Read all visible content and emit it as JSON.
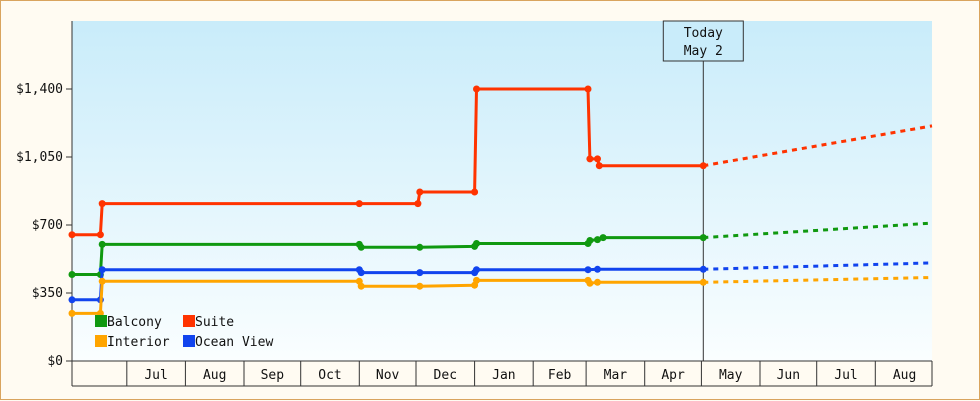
{
  "chart_data": {
    "type": "line",
    "title": "",
    "xlabel": "",
    "ylabel": "",
    "ylim": [
      0,
      1750
    ],
    "y_ticks": [
      {
        "value": 0,
        "label": "$0"
      },
      {
        "value": 350,
        "label": "$350"
      },
      {
        "value": 700,
        "label": "$700"
      },
      {
        "value": 1050,
        "label": "$1,050"
      },
      {
        "value": 1400,
        "label": "$1,400"
      }
    ],
    "x_axis": {
      "start": "2024-06-02",
      "end": "2025-08-31",
      "months": [
        {
          "label": "Jul",
          "start": "2024-07-01",
          "end": "2024-08-01"
        },
        {
          "label": "Aug",
          "start": "2024-08-01",
          "end": "2024-09-01"
        },
        {
          "label": "Sep",
          "start": "2024-09-01",
          "end": "2024-10-01"
        },
        {
          "label": "Oct",
          "start": "2024-10-01",
          "end": "2024-11-01"
        },
        {
          "label": "Nov",
          "start": "2024-11-01",
          "end": "2024-12-01"
        },
        {
          "label": "Dec",
          "start": "2024-12-01",
          "end": "2025-01-01"
        },
        {
          "label": "Jan",
          "start": "2025-01-01",
          "end": "2025-02-01"
        },
        {
          "label": "Feb",
          "start": "2025-02-01",
          "end": "2025-03-01"
        },
        {
          "label": "Mar",
          "start": "2025-03-01",
          "end": "2025-04-01"
        },
        {
          "label": "Apr",
          "start": "2025-04-01",
          "end": "2025-05-01"
        },
        {
          "label": "May",
          "start": "2025-05-01",
          "end": "2025-06-01"
        },
        {
          "label": "Jun",
          "start": "2025-06-01",
          "end": "2025-07-01"
        },
        {
          "label": "Jul",
          "start": "2025-07-01",
          "end": "2025-08-01"
        },
        {
          "label": "Aug",
          "start": "2025-08-01",
          "end": "2025-09-01"
        }
      ]
    },
    "today": {
      "date": "2025-05-02",
      "label_line1": "Today",
      "label_line2": "May 2"
    },
    "series": [
      {
        "name": "Suite",
        "color": "#ff3300",
        "points": [
          [
            "2024-06-02",
            650
          ],
          [
            "2024-06-17",
            650
          ],
          [
            "2024-06-18",
            810
          ],
          [
            "2024-11-01",
            810
          ],
          [
            "2024-12-02",
            810
          ],
          [
            "2024-12-03",
            870
          ],
          [
            "2025-01-01",
            870
          ],
          [
            "2025-01-02",
            1400
          ],
          [
            "2025-03-02",
            1400
          ],
          [
            "2025-03-03",
            1040
          ],
          [
            "2025-03-07",
            1040
          ],
          [
            "2025-03-08",
            1005
          ],
          [
            "2025-05-02",
            1005
          ]
        ],
        "forecast": [
          [
            "2025-05-02",
            1005
          ],
          [
            "2025-08-31",
            1210
          ]
        ]
      },
      {
        "name": "Balcony",
        "color": "#109910",
        "points": [
          [
            "2024-06-02",
            445
          ],
          [
            "2024-06-17",
            445
          ],
          [
            "2024-06-18",
            600
          ],
          [
            "2024-11-01",
            600
          ],
          [
            "2024-11-02",
            585
          ],
          [
            "2024-12-03",
            585
          ],
          [
            "2025-01-01",
            590
          ],
          [
            "2025-01-02",
            605
          ],
          [
            "2025-03-02",
            605
          ],
          [
            "2025-03-03",
            620
          ],
          [
            "2025-03-07",
            625
          ],
          [
            "2025-03-10",
            635
          ],
          [
            "2025-05-02",
            635
          ]
        ],
        "forecast": [
          [
            "2025-05-02",
            635
          ],
          [
            "2025-08-31",
            710
          ]
        ]
      },
      {
        "name": "Ocean View",
        "color": "#1144ee",
        "points": [
          [
            "2024-06-02",
            315
          ],
          [
            "2024-06-17",
            315
          ],
          [
            "2024-06-18",
            470
          ],
          [
            "2024-11-01",
            470
          ],
          [
            "2024-11-02",
            455
          ],
          [
            "2024-12-03",
            455
          ],
          [
            "2025-01-01",
            455
          ],
          [
            "2025-01-02",
            470
          ],
          [
            "2025-03-02",
            470
          ],
          [
            "2025-03-07",
            472
          ],
          [
            "2025-05-02",
            472
          ]
        ],
        "forecast": [
          [
            "2025-05-02",
            472
          ],
          [
            "2025-08-31",
            505
          ]
        ]
      },
      {
        "name": "Interior",
        "color": "#ffa500",
        "points": [
          [
            "2024-06-02",
            245
          ],
          [
            "2024-06-17",
            245
          ],
          [
            "2024-06-18",
            410
          ],
          [
            "2024-11-01",
            410
          ],
          [
            "2024-11-02",
            385
          ],
          [
            "2024-12-03",
            385
          ],
          [
            "2025-01-01",
            390
          ],
          [
            "2025-01-02",
            415
          ],
          [
            "2025-03-02",
            415
          ],
          [
            "2025-03-03",
            400
          ],
          [
            "2025-03-07",
            405
          ],
          [
            "2025-05-02",
            405
          ]
        ],
        "forecast": [
          [
            "2025-05-02",
            405
          ],
          [
            "2025-08-31",
            430
          ]
        ]
      }
    ],
    "legend": {
      "placement": "bottom-left",
      "items": [
        {
          "name": "Balcony",
          "color": "#109910"
        },
        {
          "name": "Suite",
          "color": "#ff3300"
        },
        {
          "name": "Interior",
          "color": "#ffa500"
        },
        {
          "name": "Ocean View",
          "color": "#1144ee"
        }
      ]
    },
    "grid": false
  }
}
